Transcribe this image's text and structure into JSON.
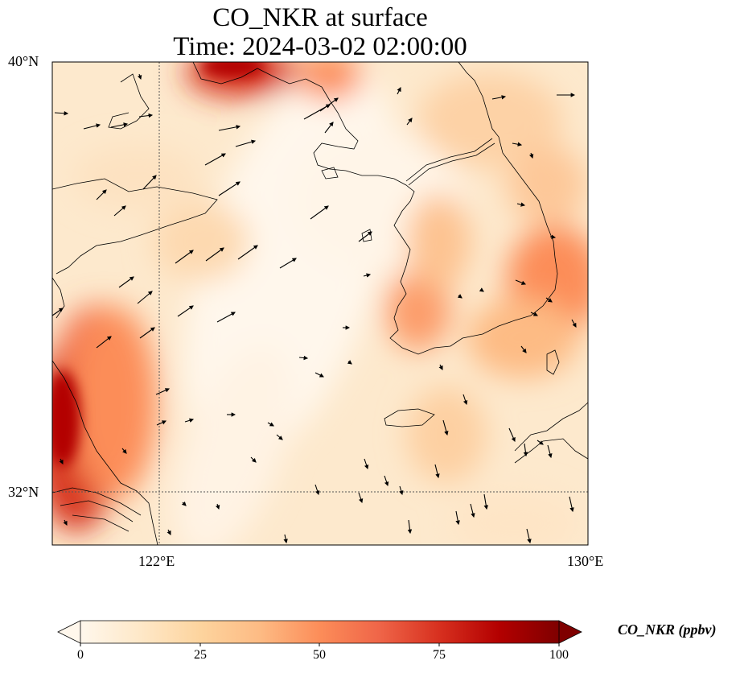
{
  "title": {
    "line1": "CO_NKR at surface",
    "line2": "Time: 2024-03-02 02:00:00"
  },
  "axes": {
    "lat_ticks": [
      "40°N",
      "32°N"
    ],
    "lon_ticks": [
      "122°E",
      "130°E"
    ],
    "lat_range": [
      31,
      40
    ],
    "lon_range": [
      120,
      130
    ],
    "gridlines": "dotted, at 122°E and 32°N"
  },
  "colorbar": {
    "label": "CO_NKR (ppbv)",
    "ticks": [
      "0",
      "25",
      "50",
      "75",
      "100"
    ],
    "range": [
      0,
      100
    ],
    "colormap": "OrRd",
    "extend": "both",
    "colors": [
      "#fff7ec",
      "#fee8c8",
      "#fdd49e",
      "#fdbb84",
      "#fc8d59",
      "#ef6548",
      "#d7301f",
      "#b30000",
      "#7f0000"
    ]
  },
  "chart_data": {
    "type": "heatmap",
    "title": "CO_NKR at surface\nTime: 2024-03-02 02:00:00",
    "xlabel": "",
    "ylabel": "",
    "x_range": [
      120,
      130
    ],
    "y_range": [
      31,
      40
    ],
    "field_hotspots_ppbv": [
      {
        "lon": 120.2,
        "lat": 32.6,
        "value": 95
      },
      {
        "lon": 120.6,
        "lat": 34.0,
        "value": 70
      },
      {
        "lon": 123.5,
        "lat": 39.9,
        "value": 95
      },
      {
        "lon": 125.5,
        "lat": 39.8,
        "value": 40
      },
      {
        "lon": 129.6,
        "lat": 35.3,
        "value": 55
      },
      {
        "lon": 128.5,
        "lat": 34.7,
        "value": 45
      },
      {
        "lon": 126.5,
        "lat": 34.8,
        "value": 50
      },
      {
        "lon": 127.6,
        "lat": 39.0,
        "value": 32
      },
      {
        "lon": 122.0,
        "lat": 35.5,
        "value": 30
      },
      {
        "lon": 124.8,
        "lat": 36.6,
        "value": 5
      },
      {
        "lon": 122.0,
        "lat": 31.5,
        "value": 25
      },
      {
        "lon": 125.0,
        "lat": 32.5,
        "value": 20
      }
    ],
    "wind_vectors": "arrows on regular grid; westerly/southwesterly over Yellow Sea, northerly near Korea Strait"
  }
}
